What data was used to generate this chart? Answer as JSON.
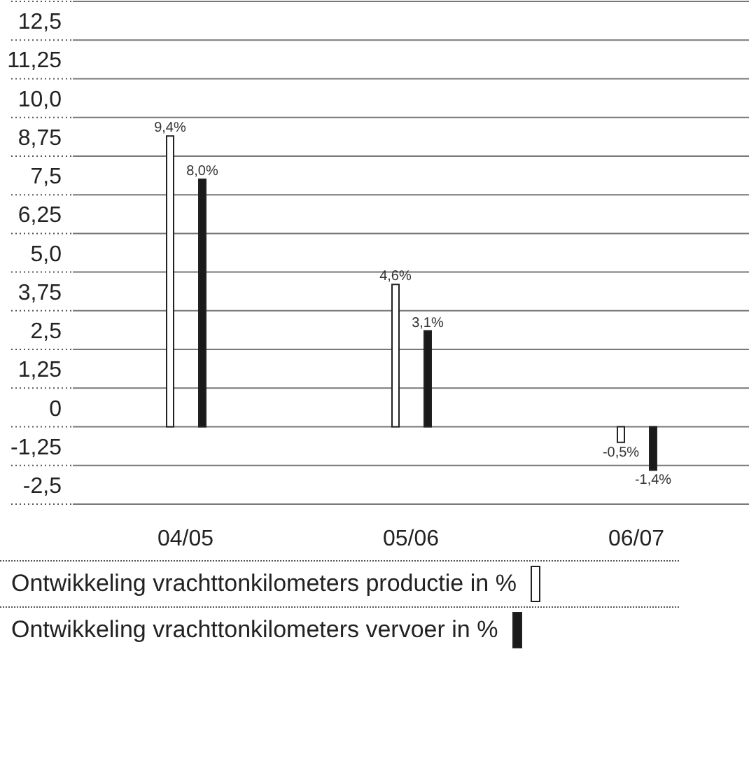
{
  "chart_data": {
    "type": "bar",
    "categories": [
      "04/05",
      "05/06",
      "06/07"
    ],
    "series": [
      {
        "name": "Ontwikkeling vrachttonkilometers productie in %",
        "color": "#ffffff",
        "values": [
          9.4,
          4.6,
          -0.5
        ],
        "value_labels": [
          "9,4%",
          "4,6%",
          "-0,5%"
        ]
      },
      {
        "name": "Ontwikkeling vrachttonkilometers vervoer in %",
        "color": "#1a1a1a",
        "values": [
          8.0,
          3.1,
          -1.4
        ],
        "value_labels": [
          "8,0%",
          "3,1%",
          "-1,4%"
        ]
      }
    ],
    "ylim": [
      -2.5,
      13.75
    ],
    "yticks": [
      {
        "value": -2.5,
        "label": "-2,5"
      },
      {
        "value": -1.25,
        "label": "-1,25"
      },
      0,
      {
        "value": 1.25,
        "label": "1,25"
      },
      {
        "value": 2.5,
        "label": "2,5"
      },
      {
        "value": 3.75,
        "label": "3,75"
      },
      {
        "value": 5,
        "label": "5,0"
      },
      {
        "value": 6.25,
        "label": "6,25"
      },
      {
        "value": 7.5,
        "label": "7,5"
      },
      {
        "value": 8.75,
        "label": "8,75"
      },
      {
        "value": 10,
        "label": "10,0"
      },
      {
        "value": 11.25,
        "label": "11,25"
      },
      {
        "value": 12.5,
        "label": "12,5"
      },
      {
        "value": 13.75,
        "label": null
      }
    ],
    "grid": "y",
    "legend": "bottom"
  }
}
